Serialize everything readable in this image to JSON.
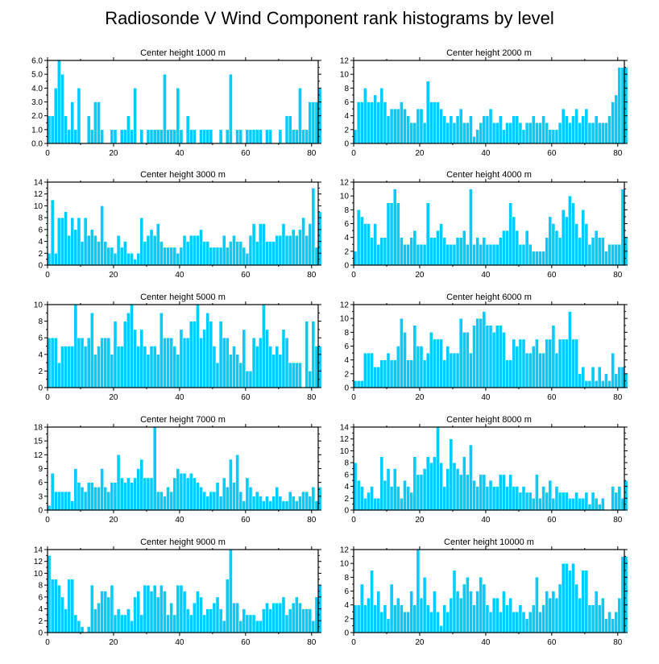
{
  "title": "Radiosonde V Wind Component rank histograms by level",
  "colors": {
    "bar_fill": "#00ccff",
    "bar_edge": "#ffffff",
    "axis": "#000000",
    "background": "#ffffff"
  },
  "chart_data": [
    {
      "type": "bar",
      "title": "Center height 1000 m",
      "xlim": [
        0,
        82
      ],
      "ylim": [
        0,
        6
      ],
      "yticks": [
        0,
        1,
        2,
        3,
        4,
        5,
        6
      ],
      "ytick_labels": [
        "0.0",
        "1.0",
        "2.0",
        "3.0",
        "4.0",
        "5.0",
        "6.0"
      ],
      "xticks": [
        0,
        20,
        40,
        60,
        80
      ],
      "values": [
        2,
        2,
        4,
        6,
        5,
        2,
        1,
        3,
        1,
        4,
        0,
        0,
        2,
        1,
        3,
        3,
        1,
        0,
        0,
        1,
        1,
        0,
        1,
        1,
        2,
        1,
        4,
        0,
        1,
        0,
        1,
        1,
        1,
        1,
        1,
        5,
        1,
        1,
        1,
        4,
        1,
        0,
        2,
        1,
        1,
        0,
        1,
        1,
        1,
        1,
        0,
        0,
        1,
        0,
        1,
        5,
        0,
        1,
        1,
        0,
        1,
        1,
        1,
        1,
        1,
        0,
        1,
        1,
        0,
        0,
        1,
        0,
        2,
        2,
        1,
        1,
        4,
        1,
        1,
        3,
        3,
        3,
        4
      ]
    },
    {
      "type": "bar",
      "title": "Center height 2000 m",
      "xlim": [
        0,
        82
      ],
      "ylim": [
        0,
        12
      ],
      "yticks": [
        0,
        2,
        4,
        6,
        8,
        10,
        12
      ],
      "ytick_labels": [
        "0",
        "2",
        "4",
        "6",
        "8",
        "10",
        "12"
      ],
      "xticks": [
        0,
        20,
        40,
        60,
        80
      ],
      "values": [
        2,
        6,
        6,
        8,
        6,
        6,
        7,
        6,
        8,
        6,
        4,
        5,
        5,
        5,
        6,
        5,
        4,
        3,
        3,
        5,
        5,
        3,
        9,
        6,
        6,
        6,
        5,
        4,
        3,
        4,
        3,
        4,
        5,
        3,
        3,
        4,
        1,
        2,
        3,
        4,
        4,
        5,
        3,
        3,
        4,
        2,
        3,
        3,
        4,
        4,
        3,
        2,
        3,
        3,
        4,
        3,
        3,
        4,
        3,
        2,
        2,
        2,
        3,
        5,
        4,
        3,
        4,
        5,
        3,
        4,
        5,
        3,
        3,
        4,
        3,
        3,
        3,
        4,
        6,
        7,
        11,
        11,
        11
      ]
    },
    {
      "type": "bar",
      "title": "Center height 3000 m",
      "xlim": [
        0,
        82
      ],
      "ylim": [
        0,
        14
      ],
      "yticks": [
        0,
        2,
        4,
        6,
        8,
        10,
        12,
        14
      ],
      "ytick_labels": [
        "0",
        "2",
        "4",
        "6",
        "8",
        "10",
        "12",
        "14"
      ],
      "xticks": [
        0,
        20,
        40,
        60,
        80
      ],
      "values": [
        2,
        11,
        2,
        8,
        8,
        9,
        5,
        8,
        6,
        8,
        4,
        8,
        5,
        6,
        5,
        4,
        10,
        4,
        3,
        3,
        2,
        5,
        3,
        4,
        2,
        2,
        1,
        2,
        8,
        4,
        5,
        6,
        5,
        7,
        4,
        3,
        3,
        3,
        3,
        2,
        3,
        5,
        4,
        5,
        5,
        5,
        6,
        4,
        4,
        3,
        3,
        3,
        3,
        5,
        3,
        4,
        5,
        4,
        4,
        3,
        2,
        5,
        7,
        4,
        7,
        7,
        4,
        4,
        4,
        5,
        5,
        7,
        5,
        5,
        6,
        5,
        6,
        8,
        5,
        7,
        13,
        3,
        9
      ]
    },
    {
      "type": "bar",
      "title": "Center height 4000 m",
      "xlim": [
        0,
        82
      ],
      "ylim": [
        0,
        12
      ],
      "yticks": [
        0,
        2,
        4,
        6,
        8,
        10,
        12
      ],
      "ytick_labels": [
        "0",
        "2",
        "4",
        "6",
        "8",
        "10",
        "12"
      ],
      "xticks": [
        0,
        20,
        40,
        60,
        80
      ],
      "values": [
        2,
        8,
        7,
        6,
        6,
        4,
        6,
        3,
        4,
        4,
        9,
        9,
        11,
        9,
        4,
        3,
        3,
        4,
        5,
        3,
        3,
        3,
        9,
        4,
        4,
        5,
        6,
        4,
        3,
        3,
        3,
        4,
        4,
        5,
        3,
        11,
        3,
        4,
        3,
        4,
        3,
        3,
        3,
        3,
        4,
        5,
        5,
        9,
        7,
        5,
        3,
        3,
        5,
        3,
        2,
        2,
        2,
        2,
        4,
        7,
        6,
        5,
        4,
        8,
        7,
        10,
        9,
        6,
        4,
        8,
        6,
        3,
        4,
        5,
        4,
        4,
        2,
        3,
        3,
        3,
        3,
        11,
        4
      ]
    },
    {
      "type": "bar",
      "title": "Center height 5000 m",
      "xlim": [
        0,
        82
      ],
      "ylim": [
        0,
        10
      ],
      "yticks": [
        0,
        2,
        4,
        6,
        8,
        10
      ],
      "ytick_labels": [
        "0",
        "2",
        "4",
        "6",
        "8",
        "10"
      ],
      "xticks": [
        0,
        20,
        40,
        60,
        80
      ],
      "values": [
        6,
        6,
        6,
        3,
        5,
        5,
        5,
        5,
        10,
        6,
        6,
        5,
        6,
        9,
        4,
        5,
        6,
        6,
        6,
        4,
        8,
        5,
        5,
        8,
        9,
        10,
        7,
        5,
        7,
        5,
        4,
        5,
        5,
        4,
        9,
        6,
        6,
        6,
        5,
        4,
        7,
        6,
        6,
        8,
        8,
        10,
        6,
        7,
        9,
        8,
        5,
        3,
        8,
        6,
        6,
        4,
        5,
        4,
        3,
        7,
        2,
        2,
        6,
        5,
        6,
        10,
        7,
        5,
        4,
        5,
        4,
        7,
        6,
        3,
        3,
        3,
        3,
        0,
        8,
        2,
        8,
        5,
        5
      ]
    },
    {
      "type": "bar",
      "title": "Center height 6000 m",
      "xlim": [
        0,
        82
      ],
      "ylim": [
        0,
        12
      ],
      "yticks": [
        0,
        2,
        4,
        6,
        8,
        10,
        12
      ],
      "ytick_labels": [
        "0",
        "2",
        "4",
        "6",
        "8",
        "10",
        "12"
      ],
      "xticks": [
        0,
        20,
        40,
        60,
        80
      ],
      "values": [
        1,
        1,
        1,
        5,
        5,
        5,
        3,
        3,
        4,
        4,
        5,
        4,
        4,
        6,
        10,
        8,
        4,
        4,
        9,
        6,
        6,
        4,
        5,
        8,
        7,
        7,
        7,
        4,
        6,
        5,
        5,
        5,
        10,
        8,
        8,
        5,
        9,
        10,
        10,
        11,
        9,
        9,
        8,
        9,
        9,
        8,
        4,
        4,
        7,
        6,
        7,
        7,
        5,
        5,
        6,
        7,
        5,
        5,
        7,
        7,
        9,
        5,
        7,
        7,
        7,
        11,
        7,
        7,
        2,
        3,
        1,
        1,
        3,
        1,
        3,
        1,
        2,
        1,
        5,
        2,
        3,
        3,
        2
      ]
    },
    {
      "type": "bar",
      "title": "Center height 7000 m",
      "xlim": [
        0,
        82
      ],
      "ylim": [
        0,
        18
      ],
      "yticks": [
        0,
        3,
        6,
        9,
        12,
        15,
        18
      ],
      "ytick_labels": [
        "0",
        "3",
        "6",
        "9",
        "12",
        "15",
        "18"
      ],
      "xticks": [
        0,
        20,
        40,
        60,
        80
      ],
      "values": [
        1,
        8,
        4,
        4,
        4,
        4,
        4,
        2,
        9,
        6,
        5,
        4,
        6,
        6,
        5,
        5,
        9,
        5,
        4,
        6,
        6,
        12,
        7,
        6,
        7,
        6,
        7,
        9,
        11,
        7,
        7,
        7,
        18,
        4,
        4,
        3,
        5,
        4,
        7,
        9,
        8,
        8,
        7,
        8,
        7,
        6,
        5,
        4,
        3,
        4,
        4,
        6,
        3,
        7,
        5,
        11,
        6,
        12,
        4,
        2,
        7,
        5,
        3,
        4,
        3,
        2,
        3,
        2,
        3,
        5,
        3,
        2,
        2,
        4,
        3,
        2,
        3,
        4,
        4,
        3,
        5,
        2,
        5
      ]
    },
    {
      "type": "bar",
      "title": "Center height 8000 m",
      "xlim": [
        0,
        82
      ],
      "ylim": [
        0,
        14
      ],
      "yticks": [
        0,
        2,
        4,
        6,
        8,
        10,
        12,
        14
      ],
      "ytick_labels": [
        "0",
        "2",
        "4",
        "6",
        "8",
        "10",
        "12",
        "14"
      ],
      "xticks": [
        0,
        20,
        40,
        60,
        80
      ],
      "values": [
        8,
        5,
        4,
        2,
        3,
        4,
        2,
        2,
        9,
        5,
        7,
        4,
        7,
        4,
        2,
        5,
        4,
        3,
        9,
        6,
        6,
        7,
        9,
        8,
        9,
        14,
        8,
        4,
        7,
        12,
        8,
        7,
        6,
        9,
        6,
        11,
        5,
        4,
        6,
        6,
        4,
        5,
        4,
        4,
        6,
        6,
        4,
        6,
        4,
        4,
        3,
        4,
        3,
        3,
        2,
        6,
        2,
        4,
        3,
        5,
        2,
        4,
        3,
        3,
        3,
        2,
        2,
        3,
        2,
        2,
        3,
        1,
        3,
        2,
        1,
        2,
        0,
        0,
        4,
        3,
        4,
        2,
        5
      ]
    },
    {
      "type": "bar",
      "title": "Center height 9000 m",
      "xlim": [
        0,
        82
      ],
      "ylim": [
        0,
        14
      ],
      "yticks": [
        0,
        2,
        4,
        6,
        8,
        10,
        12,
        14
      ],
      "ytick_labels": [
        "0",
        "2",
        "4",
        "6",
        "8",
        "10",
        "12",
        "14"
      ],
      "xticks": [
        0,
        20,
        40,
        60,
        80
      ],
      "values": [
        13,
        9,
        9,
        8,
        6,
        4,
        9,
        9,
        3,
        2,
        1,
        0,
        1,
        8,
        4,
        5,
        7,
        7,
        6,
        8,
        3,
        4,
        3,
        3,
        4,
        2,
        6,
        7,
        3,
        8,
        8,
        7,
        8,
        6,
        8,
        7,
        3,
        5,
        3,
        8,
        8,
        7,
        4,
        3,
        5,
        7,
        6,
        3,
        4,
        4,
        5,
        6,
        4,
        2,
        9,
        14,
        5,
        5,
        2,
        4,
        3,
        3,
        3,
        2,
        2,
        4,
        5,
        4,
        5,
        5,
        5,
        6,
        3,
        4,
        5,
        6,
        5,
        4,
        4,
        4,
        2,
        6,
        8
      ]
    },
    {
      "type": "bar",
      "title": "Center height 10000 m",
      "xlim": [
        0,
        82
      ],
      "ylim": [
        0,
        12
      ],
      "yticks": [
        0,
        2,
        4,
        6,
        8,
        10,
        12
      ],
      "ytick_labels": [
        "0",
        "2",
        "4",
        "6",
        "8",
        "10",
        "12"
      ],
      "xticks": [
        0,
        20,
        40,
        60,
        80
      ],
      "values": [
        4,
        4,
        7,
        4,
        5,
        9,
        4,
        6,
        3,
        4,
        2,
        7,
        4,
        5,
        4,
        3,
        3,
        6,
        4,
        12,
        5,
        8,
        4,
        3,
        6,
        3,
        1,
        4,
        3,
        5,
        9,
        6,
        5,
        7,
        8,
        6,
        4,
        6,
        8,
        7,
        4,
        3,
        5,
        5,
        3,
        6,
        4,
        5,
        3,
        3,
        4,
        3,
        2,
        3,
        4,
        8,
        3,
        4,
        6,
        5,
        6,
        5,
        7,
        10,
        10,
        9,
        10,
        7,
        5,
        9,
        9,
        4,
        4,
        6,
        4,
        5,
        2,
        3,
        2,
        3,
        5,
        11,
        11
      ]
    }
  ]
}
